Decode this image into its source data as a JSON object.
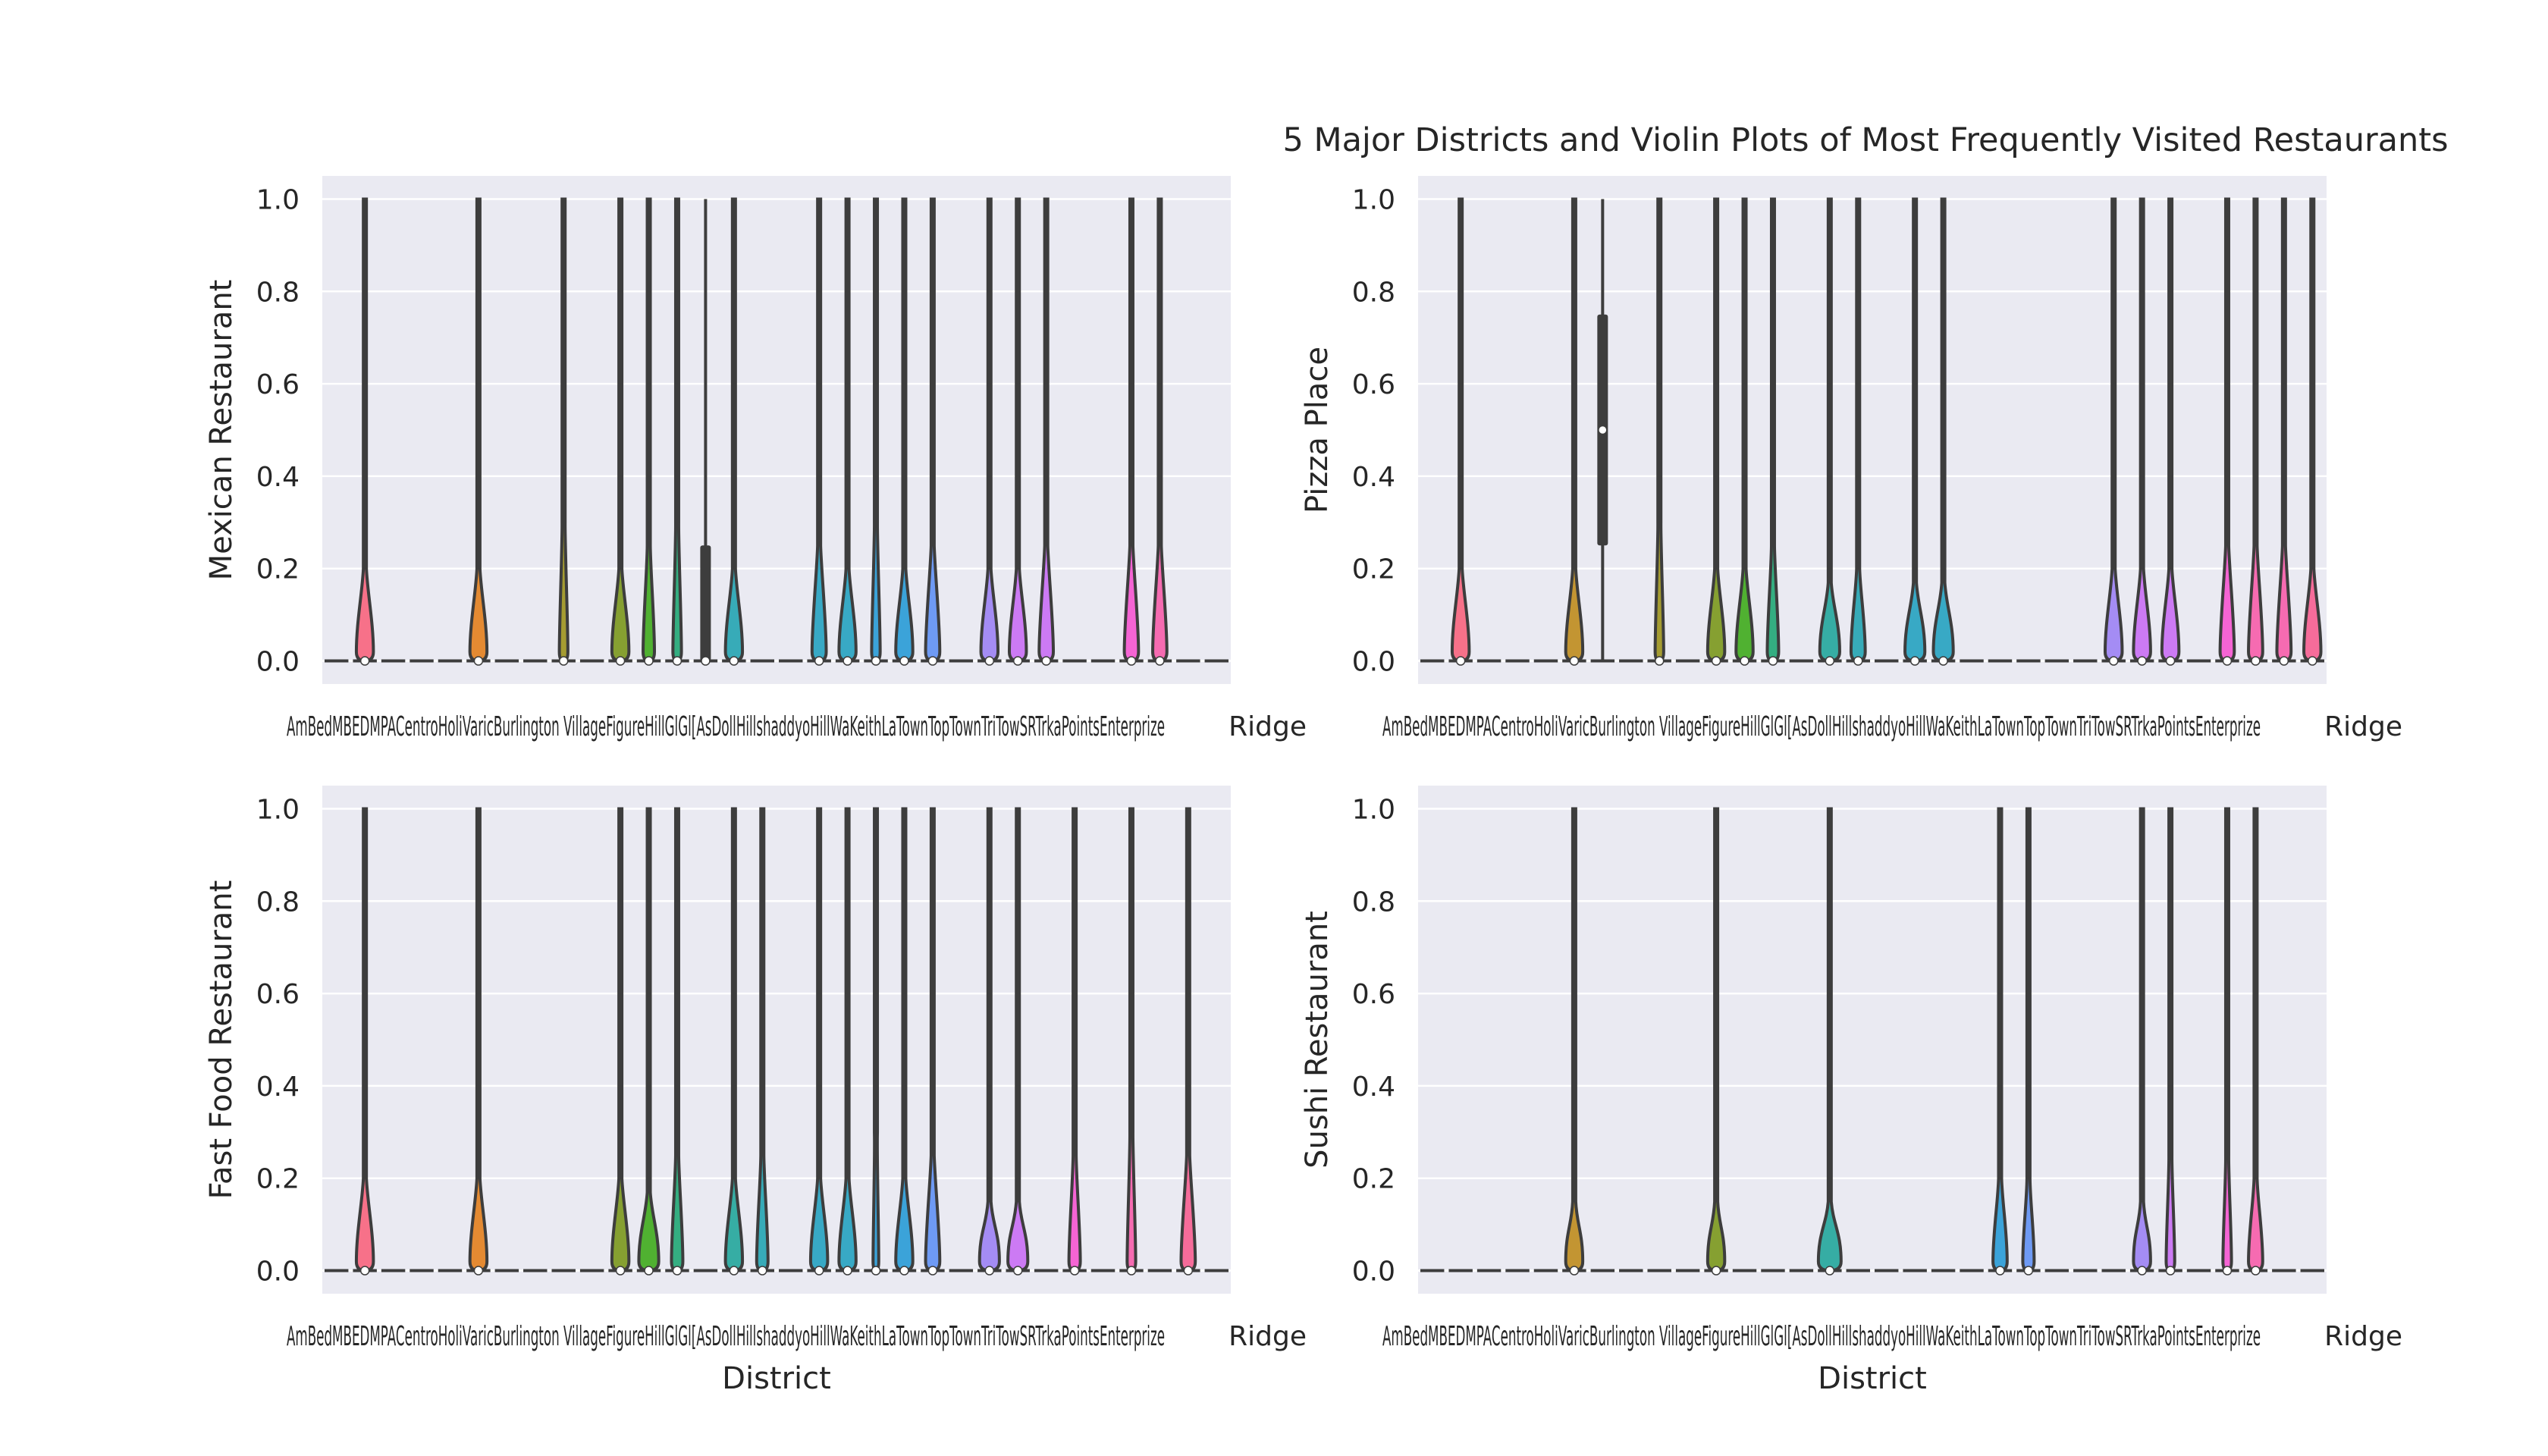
{
  "chart_data": {
    "title": "5 Major Districts and Violin Plots of Most Frequently Visited Restaurants",
    "type": "violin",
    "xlabel": "District",
    "ylim": [
      -0.05,
      1.05
    ],
    "yticks": [
      "0.0",
      "0.2",
      "0.4",
      "0.6",
      "0.8",
      "1.0"
    ],
    "ytick_values": [
      0,
      0.2,
      0.4,
      0.6,
      0.8,
      1.0
    ],
    "grid": true,
    "categories_visible_text": "",
    "palette": [
      "#f77189",
      "#f7754f",
      "#e48a32",
      "#c39532",
      "#a59c31",
      "#86a031",
      "#50b131",
      "#34ae81",
      "#36ada4",
      "#37abb8",
      "#38a9c5",
      "#3ba3d9",
      "#6e9af4",
      "#a48cf4",
      "#cc7af4",
      "#f564d4",
      "#f66bb1",
      "#f66c9a"
    ],
    "dark_color": "#3d3d3d",
    "panels": [
      {
        "ylabel": "Mexican Restaurant",
        "violins": [
          {
            "slot": 1,
            "color": "#f77189",
            "peak": 0.15,
            "width": 0.6,
            "median": 0.0
          },
          {
            "slot": 5,
            "color": "#e48a32",
            "peak": 0.15,
            "width": 0.6,
            "median": 0.0
          },
          {
            "slot": 8,
            "color": "#a59c31",
            "peak": 0.25,
            "width": 0.3,
            "median": 0.0
          },
          {
            "slot": 10,
            "color": "#86a031",
            "peak": 0.15,
            "width": 0.6,
            "median": 0.0
          },
          {
            "slot": 11,
            "color": "#50b131",
            "peak": 0.2,
            "width": 0.4,
            "median": 0.0
          },
          {
            "slot": 12,
            "color": "#34ae81",
            "peak": 0.25,
            "width": 0.3,
            "median": 0.0
          },
          {
            "slot": 13,
            "color": "#36ada4",
            "peak": 0.0,
            "width": 0.0,
            "median": 0.0,
            "box": [
              0.0,
              0.25
            ]
          },
          {
            "slot": 14,
            "color": "#37abb8",
            "peak": 0.15,
            "width": 0.6,
            "median": 0.0
          },
          {
            "slot": 17,
            "color": "#38a9c5",
            "peak": 0.2,
            "width": 0.5,
            "median": 0.0
          },
          {
            "slot": 18,
            "color": "#38a9c5",
            "peak": 0.15,
            "width": 0.6,
            "median": 0.0
          },
          {
            "slot": 19,
            "color": "#3ba3d9",
            "peak": 0.25,
            "width": 0.3,
            "median": 0.0
          },
          {
            "slot": 20,
            "color": "#3ba3d9",
            "peak": 0.15,
            "width": 0.6,
            "median": 0.0
          },
          {
            "slot": 21,
            "color": "#6e9af4",
            "peak": 0.2,
            "width": 0.5,
            "median": 0.0
          },
          {
            "slot": 23,
            "color": "#a48cf4",
            "peak": 0.15,
            "width": 0.6,
            "median": 0.0
          },
          {
            "slot": 24,
            "color": "#cc7af4",
            "peak": 0.15,
            "width": 0.6,
            "median": 0.0
          },
          {
            "slot": 25,
            "color": "#cc7af4",
            "peak": 0.2,
            "width": 0.5,
            "median": 0.0
          },
          {
            "slot": 28,
            "color": "#f564d4",
            "peak": 0.2,
            "width": 0.5,
            "median": 0.0
          },
          {
            "slot": 29,
            "color": "#f66bb1",
            "peak": 0.2,
            "width": 0.5,
            "median": 0.0
          }
        ]
      },
      {
        "ylabel": "Pizza Place",
        "violins": [
          {
            "slot": 1,
            "color": "#f77189",
            "peak": 0.15,
            "width": 0.6,
            "median": 0.0
          },
          {
            "slot": 5,
            "color": "#c39532",
            "peak": 0.15,
            "width": 0.6,
            "median": 0.0
          },
          {
            "slot": 6,
            "color": "#a59c31",
            "peak": 0.0,
            "width": 0.0,
            "median": 0.5,
            "box": [
              0.25,
              0.75
            ]
          },
          {
            "slot": 8,
            "color": "#a59c31",
            "peak": 0.25,
            "width": 0.3,
            "median": 0.0
          },
          {
            "slot": 10,
            "color": "#86a031",
            "peak": 0.15,
            "width": 0.6,
            "median": 0.0
          },
          {
            "slot": 11,
            "color": "#50b131",
            "peak": 0.15,
            "width": 0.6,
            "median": 0.0
          },
          {
            "slot": 12,
            "color": "#34ae81",
            "peak": 0.2,
            "width": 0.4,
            "median": 0.0
          },
          {
            "slot": 14,
            "color": "#36ada4",
            "peak": 0.12,
            "width": 0.7,
            "median": 0.0
          },
          {
            "slot": 15,
            "color": "#37abb8",
            "peak": 0.15,
            "width": 0.5,
            "median": 0.0
          },
          {
            "slot": 17,
            "color": "#38a9c5",
            "peak": 0.12,
            "width": 0.7,
            "median": 0.0
          },
          {
            "slot": 18,
            "color": "#38a9c5",
            "peak": 0.12,
            "width": 0.7,
            "median": 0.0
          },
          {
            "slot": 24,
            "color": "#a48cf4",
            "peak": 0.15,
            "width": 0.6,
            "median": 0.0
          },
          {
            "slot": 25,
            "color": "#cc7af4",
            "peak": 0.15,
            "width": 0.6,
            "median": 0.0
          },
          {
            "slot": 26,
            "color": "#cc7af4",
            "peak": 0.15,
            "width": 0.6,
            "median": 0.0
          },
          {
            "slot": 28,
            "color": "#f564d4",
            "peak": 0.2,
            "width": 0.5,
            "median": 0.0
          },
          {
            "slot": 29,
            "color": "#f66bb1",
            "peak": 0.2,
            "width": 0.5,
            "median": 0.0
          },
          {
            "slot": 30,
            "color": "#f66bb1",
            "peak": 0.2,
            "width": 0.5,
            "median": 0.0
          },
          {
            "slot": 31,
            "color": "#f66c9a",
            "peak": 0.15,
            "width": 0.6,
            "median": 0.0
          }
        ]
      },
      {
        "ylabel": "Fast Food Restaurant",
        "violins": [
          {
            "slot": 1,
            "color": "#f77189",
            "peak": 0.15,
            "width": 0.6,
            "median": 0.0
          },
          {
            "slot": 5,
            "color": "#e48a32",
            "peak": 0.15,
            "width": 0.6,
            "median": 0.0
          },
          {
            "slot": 10,
            "color": "#86a031",
            "peak": 0.15,
            "width": 0.6,
            "median": 0.0
          },
          {
            "slot": 11,
            "color": "#50b131",
            "peak": 0.12,
            "width": 0.7,
            "median": 0.0
          },
          {
            "slot": 12,
            "color": "#34ae81",
            "peak": 0.2,
            "width": 0.4,
            "median": 0.0
          },
          {
            "slot": 14,
            "color": "#36ada4",
            "peak": 0.15,
            "width": 0.6,
            "median": 0.0
          },
          {
            "slot": 15,
            "color": "#37abb8",
            "peak": 0.2,
            "width": 0.4,
            "median": 0.0
          },
          {
            "slot": 17,
            "color": "#38a9c5",
            "peak": 0.15,
            "width": 0.6,
            "median": 0.0
          },
          {
            "slot": 18,
            "color": "#38a9c5",
            "peak": 0.15,
            "width": 0.6,
            "median": 0.0
          },
          {
            "slot": 19,
            "color": "#3ba3d9",
            "peak": 0.25,
            "width": 0.2,
            "median": 0.0
          },
          {
            "slot": 20,
            "color": "#3ba3d9",
            "peak": 0.15,
            "width": 0.6,
            "median": 0.0
          },
          {
            "slot": 21,
            "color": "#6e9af4",
            "peak": 0.2,
            "width": 0.5,
            "median": 0.0
          },
          {
            "slot": 23,
            "color": "#a48cf4",
            "peak": 0.1,
            "width": 0.7,
            "median": 0.0
          },
          {
            "slot": 24,
            "color": "#cc7af4",
            "peak": 0.1,
            "width": 0.7,
            "median": 0.0
          },
          {
            "slot": 26,
            "color": "#f564d4",
            "peak": 0.2,
            "width": 0.4,
            "median": 0.0
          },
          {
            "slot": 28,
            "color": "#f66bb1",
            "peak": 0.25,
            "width": 0.3,
            "median": 0.0
          },
          {
            "slot": 30,
            "color": "#f66c9a",
            "peak": 0.2,
            "width": 0.5,
            "median": 0.0
          }
        ]
      },
      {
        "ylabel": "Sushi Restaurant",
        "violins": [
          {
            "slot": 5,
            "color": "#c39532",
            "peak": 0.1,
            "width": 0.6,
            "median": 0.0
          },
          {
            "slot": 10,
            "color": "#86a031",
            "peak": 0.1,
            "width": 0.6,
            "median": 0.0
          },
          {
            "slot": 14,
            "color": "#36ada4",
            "peak": 0.1,
            "width": 0.8,
            "median": 0.0
          },
          {
            "slot": 20,
            "color": "#3ba3d9",
            "peak": 0.15,
            "width": 0.5,
            "median": 0.0
          },
          {
            "slot": 21,
            "color": "#6e9af4",
            "peak": 0.15,
            "width": 0.4,
            "median": 0.0
          },
          {
            "slot": 25,
            "color": "#a48cf4",
            "peak": 0.1,
            "width": 0.6,
            "median": 0.0
          },
          {
            "slot": 26,
            "color": "#cc7af4",
            "peak": 0.2,
            "width": 0.3,
            "median": 0.0
          },
          {
            "slot": 28,
            "color": "#f564d4",
            "peak": 0.2,
            "width": 0.3,
            "median": 0.0
          },
          {
            "slot": 29,
            "color": "#f66bb1",
            "peak": 0.15,
            "width": 0.5,
            "median": 0.0
          }
        ]
      }
    ],
    "overlapping_tick_text_left": "AmBedMBEDMPACentroHoliVaricBurlington VillageFigureHillGlGl[AsDollHillshaddyoHillWaKeithLaTownTopTownTriTowSRTrkaPointsEnterprize",
    "overlapping_tick_text_right": "Ridge"
  }
}
